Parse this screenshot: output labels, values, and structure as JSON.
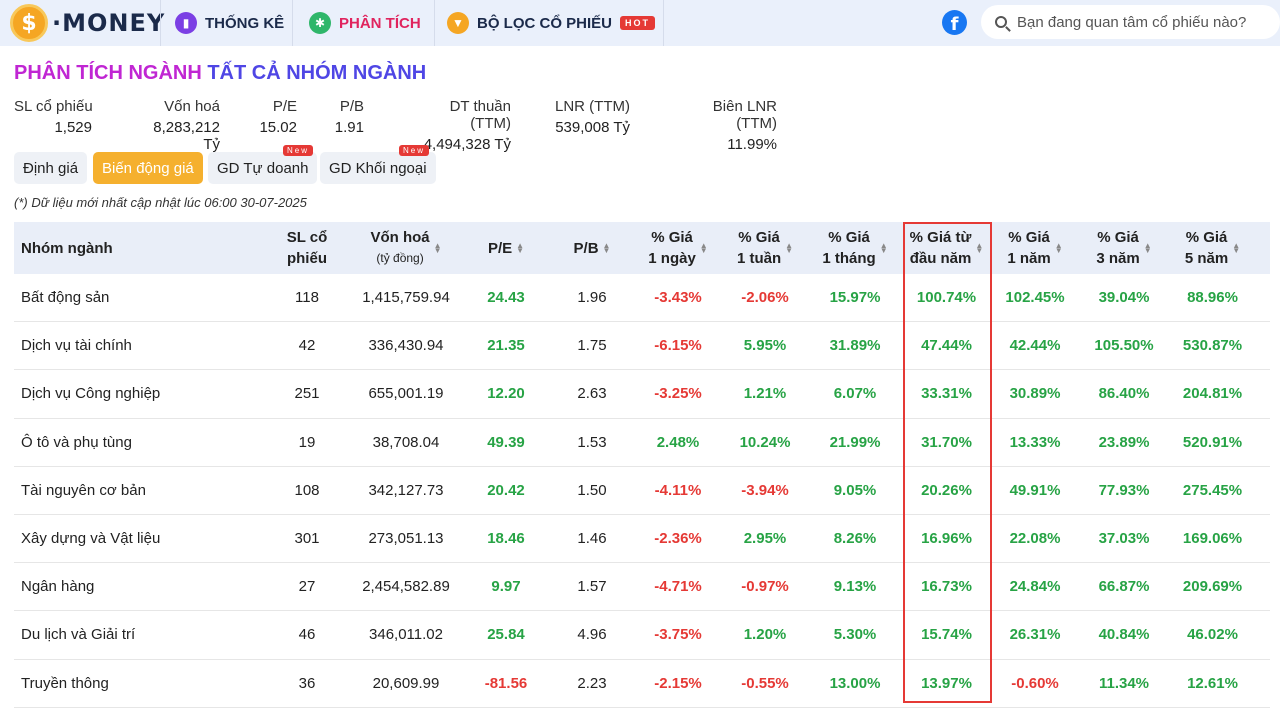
{
  "nav": {
    "logo_text": "MONEY",
    "logo_coin": "$",
    "items": [
      {
        "label": "THỐNG KÊ",
        "icon": "bar-chart-icon",
        "color": "#7b3fe4"
      },
      {
        "label": "PHÂN TÍCH",
        "icon": "slack-icon",
        "color": "#2fb66a"
      },
      {
        "label": "BỘ LỌC CỔ PHIẾU",
        "icon": "filter-icon",
        "color": "#f5a623"
      }
    ],
    "hot_badge": "HOT",
    "facebook_glyph": "f",
    "search_placeholder": "Bạn đang quan tâm cổ phiếu nào?"
  },
  "title": {
    "part1": "PHÂN TÍCH NGÀNH",
    "part2": "TẤT CẢ NHÓM NGÀNH"
  },
  "stats": [
    {
      "label": "SL cổ phiếu",
      "value": "1,529"
    },
    {
      "label": "Vốn hoá",
      "value": "8,283,212 Tỷ"
    },
    {
      "label": "P/E",
      "value": "15.02"
    },
    {
      "label": "P/B",
      "value": "1.91"
    },
    {
      "label": "DT thuần (TTM)",
      "value": "4,494,328 Tỷ"
    },
    {
      "label": "LNR (TTM)",
      "value": "539,008 Tỷ"
    },
    {
      "label": "Biên LNR (TTM)",
      "value": "11.99%"
    }
  ],
  "tabs": [
    {
      "label": "Định giá",
      "active": false
    },
    {
      "label": "Biến động giá",
      "active": true
    },
    {
      "label": "GD Tự doanh",
      "active": false,
      "badge": "New"
    },
    {
      "label": "GD Khối ngoại",
      "active": false,
      "badge": "New"
    }
  ],
  "note": "(*) Dữ liệu mới nhất cập nhật lúc 06:00 30-07-2025",
  "table": {
    "headers": [
      {
        "line1": "Nhóm ngành",
        "line2": ""
      },
      {
        "line1": "SL cổ",
        "line2": "phiếu"
      },
      {
        "line1": "Vốn hoá",
        "line2": "(tỷ đồng)"
      },
      {
        "line1": "P/E",
        "line2": ""
      },
      {
        "line1": "P/B",
        "line2": ""
      },
      {
        "line1": "% Giá",
        "line2": "1 ngày"
      },
      {
        "line1": "% Giá",
        "line2": "1 tuần"
      },
      {
        "line1": "% Giá",
        "line2": "1 tháng"
      },
      {
        "line1": "% Giá từ",
        "line2": "đầu năm"
      },
      {
        "line1": "% Giá",
        "line2": "1 năm"
      },
      {
        "line1": "% Giá",
        "line2": "3 năm"
      },
      {
        "line1": "% Giá",
        "line2": "5 năm"
      }
    ],
    "rows": [
      [
        "Bất động sản",
        "118",
        "1,415,759.94",
        "24.43",
        "1.96",
        "-3.43%",
        "-2.06%",
        "15.97%",
        "100.74%",
        "102.45%",
        "39.04%",
        "88.96%"
      ],
      [
        "Dịch vụ tài chính",
        "42",
        "336,430.94",
        "21.35",
        "1.75",
        "-6.15%",
        "5.95%",
        "31.89%",
        "47.44%",
        "42.44%",
        "105.50%",
        "530.87%"
      ],
      [
        "Dịch vụ Công nghiệp",
        "251",
        "655,001.19",
        "12.20",
        "2.63",
        "-3.25%",
        "1.21%",
        "6.07%",
        "33.31%",
        "30.89%",
        "86.40%",
        "204.81%"
      ],
      [
        "Ô tô và phụ tùng",
        "19",
        "38,708.04",
        "49.39",
        "1.53",
        "2.48%",
        "10.24%",
        "21.99%",
        "31.70%",
        "13.33%",
        "23.89%",
        "520.91%"
      ],
      [
        "Tài nguyên cơ bản",
        "108",
        "342,127.73",
        "20.42",
        "1.50",
        "-4.11%",
        "-3.94%",
        "9.05%",
        "20.26%",
        "49.91%",
        "77.93%",
        "275.45%"
      ],
      [
        "Xây dựng và Vật liệu",
        "301",
        "273,051.13",
        "18.46",
        "1.46",
        "-2.36%",
        "2.95%",
        "8.26%",
        "16.96%",
        "22.08%",
        "37.03%",
        "169.06%"
      ],
      [
        "Ngân hàng",
        "27",
        "2,454,582.89",
        "9.97",
        "1.57",
        "-4.71%",
        "-0.97%",
        "9.13%",
        "16.73%",
        "24.84%",
        "66.87%",
        "209.69%"
      ],
      [
        "Du lịch và Giải trí",
        "46",
        "346,011.02",
        "25.84",
        "4.96",
        "-3.75%",
        "1.20%",
        "5.30%",
        "15.74%",
        "26.31%",
        "40.84%",
        "46.02%"
      ],
      [
        "Truyền thông",
        "36",
        "20,609.99",
        "-81.56",
        "2.23",
        "-2.15%",
        "-0.55%",
        "13.00%",
        "13.97%",
        "-0.60%",
        "11.34%",
        "12.61%"
      ]
    ]
  },
  "colors": {
    "positive": "#27a345",
    "negative": "#e53935",
    "accent": "#f5b02e",
    "title_pink": "#c026d3",
    "title_blue": "#4f46e5"
  }
}
